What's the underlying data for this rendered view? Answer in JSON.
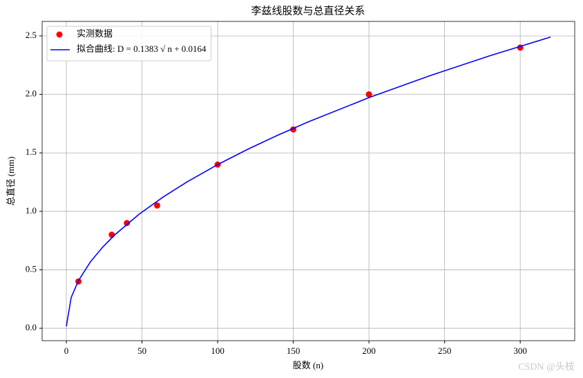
{
  "chart_data": {
    "type": "scatter",
    "title": "李兹线股数与总直径关系",
    "xlabel": "股数 (n)",
    "ylabel": "总直径 (mm)",
    "series": [
      {
        "name": "实测数据",
        "type": "scatter",
        "color": "#ff0000",
        "x": [
          8,
          30,
          40,
          60,
          100,
          150,
          200,
          300
        ],
        "values": [
          0.4,
          0.8,
          0.9,
          1.05,
          1.4,
          1.7,
          2.0,
          2.4
        ]
      },
      {
        "name": "拟合曲线: D = 0.1383 √ n + 0.0164",
        "type": "line",
        "color": "#0000ff",
        "x": [
          0,
          3.2,
          8,
          16,
          24,
          32,
          48,
          64,
          80,
          100,
          120,
          140,
          160,
          200,
          240,
          280,
          320
        ],
        "values": [
          0.0164,
          0.2638,
          0.4076,
          0.5696,
          0.6939,
          0.7987,
          0.9746,
          1.1228,
          1.2534,
          1.3994,
          1.5314,
          1.6528,
          1.7658,
          1.9723,
          2.1589,
          2.3306,
          2.4904
        ]
      }
    ],
    "xlim": [
      -16,
      336
    ],
    "ylim": [
      -0.106,
      2.624
    ],
    "xticks": [
      0,
      50,
      100,
      150,
      200,
      250,
      300
    ],
    "yticks": [
      {
        "value": 0,
        "label": "0.0"
      },
      {
        "value": 0.5,
        "label": "0.5"
      },
      {
        "value": 1,
        "label": "1.0"
      },
      {
        "value": 1.5,
        "label": "1.5"
      },
      {
        "value": 2,
        "label": "2.0"
      },
      {
        "value": 2.5,
        "label": "2.5"
      }
    ],
    "grid": true,
    "legend": "upper-left"
  },
  "watermark": "CSDN @头枝"
}
